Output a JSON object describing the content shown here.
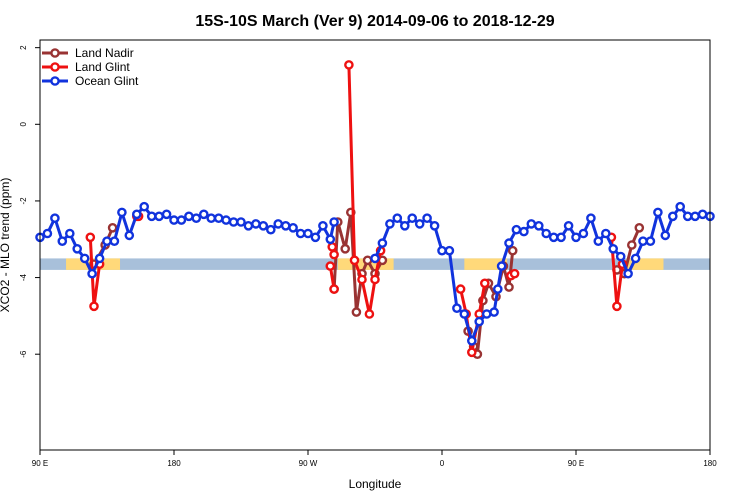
{
  "chart_data": {
    "type": "line",
    "title": "15S-10S March (Ver 9)   2014-09-06 to 2018-12-29",
    "xlabel": "Longitude",
    "ylabel": "XCO2 - MLO trend (ppm)",
    "x_axis": {
      "range": [
        90,
        450
      ],
      "ticks": [
        {
          "value": 90,
          "label": "90 E"
        },
        {
          "value": 162,
          "label": "180"
        },
        {
          "value": 234,
          "label": "90 W"
        },
        {
          "value": 306,
          "label": "0"
        },
        {
          "value": 378,
          "label": "90 E"
        },
        {
          "value": 450,
          "label": "180"
        }
      ]
    },
    "y_axis": {
      "range": [
        -8.5,
        2.2
      ],
      "ticks": [
        {
          "value": 2,
          "label": "2"
        },
        {
          "value": 0,
          "label": "0"
        },
        {
          "value": -2,
          "label": "-2"
        },
        {
          "value": -4,
          "label": "-4"
        },
        {
          "value": -6,
          "label": "-6"
        }
      ]
    },
    "grid": false,
    "legend": "top-left",
    "land_band": {
      "y_from": -3.8,
      "y_to": -3.5,
      "color": "#A8C0DA"
    },
    "land_segments": [
      {
        "x_from": 104,
        "x_to": 133
      },
      {
        "x_from": 250,
        "x_to": 280
      },
      {
        "x_from": 318,
        "x_to": 341
      },
      {
        "x_from": 405,
        "x_to": 425
      }
    ],
    "land_color": "#FFD97A",
    "series": [
      {
        "name": "Land Nadir",
        "color": "#993333",
        "segments": [
          [
            [
              119,
              -3.65
            ],
            [
              125,
              -3.15
            ],
            [
              129,
              -2.7
            ]
          ],
          [
            [
              248,
              -4.3
            ],
            [
              250,
              -2.55
            ],
            [
              254,
              -3.25
            ],
            [
              257,
              -2.3
            ],
            [
              260,
              -4.9
            ],
            [
              263,
              -3.9
            ],
            [
              266,
              -3.55
            ],
            [
              270,
              -3.9
            ],
            [
              274,
              -3.55
            ]
          ],
          [
            [
              320,
              -5.4
            ],
            [
              323,
              -5.8
            ],
            [
              325,
              -6.0
            ],
            [
              328,
              -4.6
            ],
            [
              331,
              -4.15
            ],
            [
              335,
              -4.5
            ],
            [
              339,
              -3.7
            ],
            [
              342,
              -4.25
            ],
            [
              344,
              -3.3
            ]
          ],
          [
            [
              400,
              -3.8
            ],
            [
              404,
              -3.9
            ],
            [
              408,
              -3.15
            ],
            [
              412,
              -2.7
            ]
          ]
        ]
      },
      {
        "name": "Land Glint",
        "color": "#EE1111",
        "segments": [
          [
            [
              117,
              -2.95
            ],
            [
              119,
              -4.75
            ],
            [
              122,
              -3.65
            ]
          ],
          [
            [
              246,
              -3.7
            ],
            [
              248,
              -4.3
            ]
          ],
          [
            [
              247,
              -3.2
            ],
            [
              248,
              -3.4
            ]
          ],
          [
            [
              256,
              1.55
            ],
            [
              259,
              -3.55
            ],
            [
              263,
              -4.05
            ],
            [
              267,
              -4.95
            ],
            [
              270,
              -4.05
            ],
            [
              273,
              -3.3
            ]
          ],
          [
            [
              316,
              -4.3
            ],
            [
              319,
              -4.95
            ],
            [
              322,
              -5.95
            ],
            [
              326,
              -4.95
            ],
            [
              329,
              -4.15
            ]
          ],
          [
            [
              343,
              -3.95
            ],
            [
              345,
              -3.9
            ]
          ],
          [
            [
              397,
              -2.95
            ],
            [
              400,
              -4.75
            ],
            [
              403,
              -3.65
            ]
          ],
          [
            [
              142,
              -2.4
            ],
            [
              143,
              -2.4
            ]
          ]
        ]
      },
      {
        "name": "Ocean Glint",
        "color": "#1133DD",
        "segments": [
          [
            [
              90,
              -2.95
            ],
            [
              94,
              -2.85
            ],
            [
              98,
              -2.45
            ],
            [
              102,
              -3.05
            ],
            [
              106,
              -2.85
            ],
            [
              110,
              -3.25
            ],
            [
              114,
              -3.5
            ],
            [
              118,
              -3.9
            ],
            [
              122,
              -3.5
            ],
            [
              126,
              -3.05
            ],
            [
              130,
              -3.05
            ],
            [
              134,
              -2.3
            ],
            [
              138,
              -2.9
            ],
            [
              142,
              -2.35
            ],
            [
              146,
              -2.15
            ],
            [
              150,
              -2.4
            ],
            [
              154,
              -2.4
            ],
            [
              158,
              -2.35
            ],
            [
              162,
              -2.5
            ],
            [
              166,
              -2.5
            ],
            [
              170,
              -2.4
            ],
            [
              174,
              -2.45
            ],
            [
              178,
              -2.35
            ],
            [
              182,
              -2.45
            ],
            [
              186,
              -2.45
            ],
            [
              190,
              -2.5
            ],
            [
              194,
              -2.55
            ],
            [
              198,
              -2.55
            ],
            [
              202,
              -2.65
            ],
            [
              206,
              -2.6
            ],
            [
              210,
              -2.65
            ],
            [
              214,
              -2.75
            ],
            [
              218,
              -2.6
            ],
            [
              222,
              -2.65
            ],
            [
              226,
              -2.7
            ],
            [
              230,
              -2.85
            ],
            [
              234,
              -2.85
            ],
            [
              238,
              -2.95
            ],
            [
              242,
              -2.65
            ],
            [
              246,
              -3.0
            ],
            [
              248,
              -2.55
            ]
          ],
          [
            [
              270,
              -3.5
            ],
            [
              274,
              -3.1
            ],
            [
              278,
              -2.6
            ],
            [
              282,
              -2.45
            ],
            [
              286,
              -2.65
            ],
            [
              290,
              -2.45
            ],
            [
              294,
              -2.6
            ],
            [
              298,
              -2.45
            ],
            [
              302,
              -2.65
            ],
            [
              306,
              -3.3
            ],
            [
              310,
              -3.3
            ],
            [
              314,
              -4.8
            ],
            [
              318,
              -4.95
            ],
            [
              322,
              -5.65
            ],
            [
              326,
              -5.15
            ],
            [
              330,
              -4.95
            ],
            [
              334,
              -4.9
            ],
            [
              336,
              -4.3
            ],
            [
              338,
              -3.7
            ],
            [
              342,
              -3.1
            ],
            [
              346,
              -2.75
            ],
            [
              350,
              -2.8
            ],
            [
              354,
              -2.6
            ],
            [
              358,
              -2.65
            ],
            [
              362,
              -2.85
            ],
            [
              366,
              -2.95
            ],
            [
              370,
              -2.95
            ],
            [
              374,
              -2.65
            ],
            [
              378,
              -2.95
            ],
            [
              382,
              -2.85
            ],
            [
              386,
              -2.45
            ],
            [
              390,
              -3.05
            ],
            [
              394,
              -2.85
            ],
            [
              398,
              -3.25
            ],
            [
              402,
              -3.45
            ],
            [
              406,
              -3.9
            ],
            [
              410,
              -3.5
            ],
            [
              414,
              -3.05
            ],
            [
              418,
              -3.05
            ],
            [
              422,
              -2.3
            ],
            [
              426,
              -2.9
            ],
            [
              430,
              -2.4
            ],
            [
              434,
              -2.15
            ],
            [
              438,
              -2.4
            ],
            [
              442,
              -2.4
            ],
            [
              446,
              -2.35
            ],
            [
              450,
              -2.4
            ]
          ]
        ]
      }
    ]
  }
}
